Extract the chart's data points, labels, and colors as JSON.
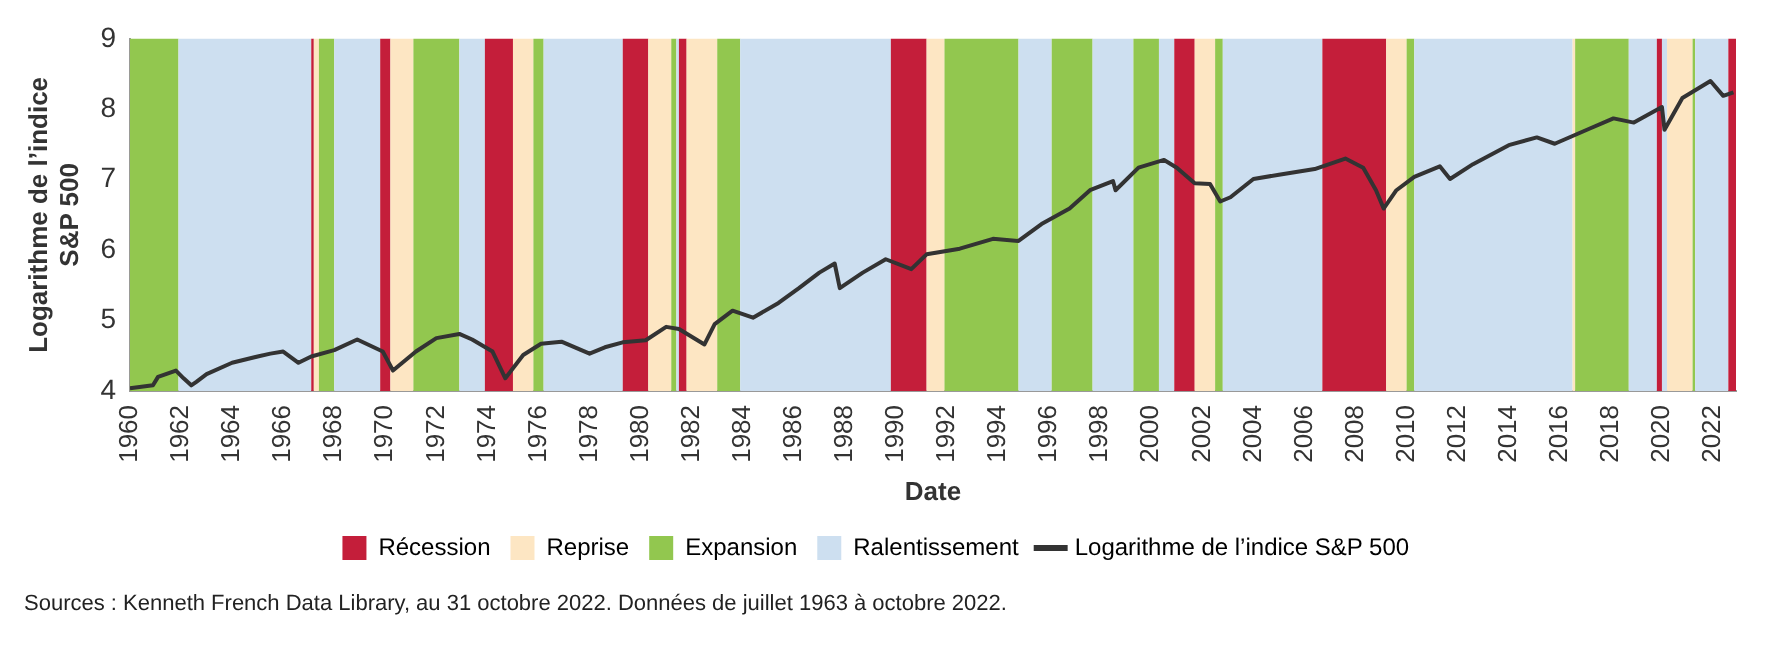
{
  "chart_data": {
    "type": "line",
    "xlabel": "Date",
    "ylabel": "Logarithme de l’indice S&P 500",
    "xlim": [
      1960,
      2022.9
    ],
    "xticks": [
      1960,
      1962,
      1964,
      1966,
      1968,
      1970,
      1972,
      1974,
      1976,
      1978,
      1980,
      1982,
      1984,
      1986,
      1988,
      1990,
      1992,
      1994,
      1996,
      1998,
      2000,
      2002,
      2004,
      2006,
      2008,
      2010,
      2012,
      2014,
      2016,
      2018,
      2020,
      2022
    ],
    "ylim": [
      4,
      9
    ],
    "yticks": [
      4,
      5,
      6,
      7,
      8,
      9
    ],
    "grid": false,
    "legend": "bottom",
    "marker": "none",
    "line_style": "solid",
    "series": [
      {
        "name": "Logarithme de l’indice S&P 500",
        "color": "#333333",
        "x": [
          1960,
          1960.9,
          1961.1,
          1961.8,
          1962.1,
          1962.4,
          1962.6,
          1963,
          1964,
          1965,
          1965.5,
          1966,
          1966.6,
          1967.1,
          1968,
          1968.9,
          1969.9,
          1970.3,
          1971.2,
          1972,
          1972.9,
          1973.4,
          1974.2,
          1974.7,
          1975.4,
          1976.1,
          1976.9,
          1978,
          1978.6,
          1979.3,
          1980.2,
          1981,
          1981.5,
          1982.5,
          1982.9,
          1983.6,
          1984.4,
          1985.4,
          1986.2,
          1987,
          1987.6,
          1987.8,
          1988.7,
          1989.6,
          1990.6,
          1991.2,
          1992.5,
          1993.8,
          1994.8,
          1995.7,
          1996.8,
          1997.6,
          1998.5,
          1998.6,
          1999.5,
          2000.5,
          2001,
          2001.7,
          2002.3,
          2002.7,
          2003.1,
          2004,
          2005,
          2006.4,
          2007.6,
          2008.3,
          2008.8,
          2009.1,
          2009.6,
          2010.3,
          2011.3,
          2011.7,
          2012.6,
          2014,
          2015.1,
          2015.8,
          2017.2,
          2018.1,
          2018.9,
          2020,
          2020.1,
          2020.8,
          2021.9,
          2022.4,
          2022.8
        ],
        "values": [
          4.04,
          4.08,
          4.2,
          4.29,
          4.18,
          4.08,
          4.13,
          4.24,
          4.4,
          4.49,
          4.53,
          4.56,
          4.4,
          4.49,
          4.58,
          4.73,
          4.56,
          4.29,
          4.56,
          4.75,
          4.81,
          4.73,
          4.56,
          4.18,
          4.51,
          4.67,
          4.7,
          4.53,
          4.62,
          4.69,
          4.72,
          4.91,
          4.88,
          4.66,
          4.95,
          5.14,
          5.04,
          5.25,
          5.46,
          5.68,
          5.81,
          5.46,
          5.68,
          5.87,
          5.73,
          5.94,
          6.02,
          6.16,
          6.13,
          6.37,
          6.59,
          6.85,
          6.98,
          6.85,
          7.17,
          7.28,
          7.17,
          6.95,
          6.94,
          6.69,
          6.75,
          7.01,
          7.07,
          7.15,
          7.3,
          7.17,
          6.85,
          6.59,
          6.85,
          7.04,
          7.19,
          7.01,
          7.22,
          7.49,
          7.6,
          7.51,
          7.73,
          7.87,
          7.81,
          8.03,
          7.71,
          8.16,
          8.4,
          8.19,
          8.24
        ]
      }
    ],
    "bands": [
      {
        "axis": "x",
        "from": 1960,
        "to": 1961.9,
        "color": "#92c74f"
      },
      {
        "axis": "x",
        "from": 1961.9,
        "to": 1967.1,
        "color": "#cddff0"
      },
      {
        "axis": "x",
        "from": 1967.1,
        "to": 1967.2,
        "label": "Récession",
        "color": "#c41e3a"
      },
      {
        "axis": "x",
        "from": 1967.2,
        "to": 1967.4,
        "label": "Reprise",
        "color": "#fde6c3"
      },
      {
        "axis": "x",
        "from": 1967.4,
        "to": 1968,
        "label": "Expansion",
        "color": "#92c74f"
      },
      {
        "axis": "x",
        "from": 1968,
        "to": 1969.8,
        "label": "Ralentissement",
        "color": "#cddff0"
      },
      {
        "axis": "x",
        "from": 1969.8,
        "to": 1970.2,
        "color": "#c41e3a"
      },
      {
        "axis": "x",
        "from": 1970.2,
        "to": 1971.1,
        "color": "#fde6c3"
      },
      {
        "axis": "x",
        "from": 1971.1,
        "to": 1972.9,
        "color": "#92c74f"
      },
      {
        "axis": "x",
        "from": 1972.9,
        "to": 1973.9,
        "color": "#cddff0"
      },
      {
        "axis": "x",
        "from": 1973.9,
        "to": 1975,
        "color": "#c41e3a"
      },
      {
        "axis": "x",
        "from": 1975,
        "to": 1975.8,
        "color": "#fde6c3"
      },
      {
        "axis": "x",
        "from": 1975.8,
        "to": 1976.2,
        "color": "#92c74f"
      },
      {
        "axis": "x",
        "from": 1976.2,
        "to": 1979.3,
        "color": "#cddff0"
      },
      {
        "axis": "x",
        "from": 1979.3,
        "to": 1980.3,
        "color": "#c41e3a"
      },
      {
        "axis": "x",
        "from": 1980.3,
        "to": 1981.2,
        "color": "#fde6c3"
      },
      {
        "axis": "x",
        "from": 1981.2,
        "to": 1981.4,
        "color": "#92c74f"
      },
      {
        "axis": "x",
        "from": 1981.4,
        "to": 1981.5,
        "color": "#cddff0"
      },
      {
        "axis": "x",
        "from": 1981.5,
        "to": 1981.8,
        "color": "#c41e3a"
      },
      {
        "axis": "x",
        "from": 1981.8,
        "to": 1983,
        "color": "#fde6c3"
      },
      {
        "axis": "x",
        "from": 1983,
        "to": 1983.9,
        "color": "#92c74f"
      },
      {
        "axis": "x",
        "from": 1983.9,
        "to": 1989.8,
        "color": "#cddff0"
      },
      {
        "axis": "x",
        "from": 1989.8,
        "to": 1991.2,
        "color": "#c41e3a"
      },
      {
        "axis": "x",
        "from": 1991.2,
        "to": 1991.9,
        "color": "#fde6c3"
      },
      {
        "axis": "x",
        "from": 1991.9,
        "to": 1994.8,
        "color": "#92c74f"
      },
      {
        "axis": "x",
        "from": 1994.8,
        "to": 1996.1,
        "color": "#cddff0"
      },
      {
        "axis": "x",
        "from": 1996.1,
        "to": 1997.7,
        "color": "#92c74f"
      },
      {
        "axis": "x",
        "from": 1997.7,
        "to": 1999.3,
        "color": "#cddff0"
      },
      {
        "axis": "x",
        "from": 1999.3,
        "to": 2000.3,
        "color": "#92c74f"
      },
      {
        "axis": "x",
        "from": 2000.3,
        "to": 2000.9,
        "color": "#cddff0"
      },
      {
        "axis": "x",
        "from": 2000.9,
        "to": 2001.7,
        "color": "#c41e3a"
      },
      {
        "axis": "x",
        "from": 2001.7,
        "to": 2002.5,
        "color": "#fde6c3"
      },
      {
        "axis": "x",
        "from": 2002.5,
        "to": 2002.8,
        "color": "#92c74f"
      },
      {
        "axis": "x",
        "from": 2002.8,
        "to": 2006.7,
        "color": "#cddff0"
      },
      {
        "axis": "x",
        "from": 2006.7,
        "to": 2009.2,
        "color": "#c41e3a"
      },
      {
        "axis": "x",
        "from": 2009.2,
        "to": 2010,
        "color": "#fde6c3"
      },
      {
        "axis": "x",
        "from": 2010,
        "to": 2010.3,
        "color": "#92c74f"
      },
      {
        "axis": "x",
        "from": 2010.3,
        "to": 2016.5,
        "color": "#cddff0"
      },
      {
        "axis": "x",
        "from": 2016.5,
        "to": 2016.6,
        "color": "#fde6c3"
      },
      {
        "axis": "x",
        "from": 2016.6,
        "to": 2018.7,
        "color": "#92c74f"
      },
      {
        "axis": "x",
        "from": 2018.7,
        "to": 2019.8,
        "color": "#cddff0"
      },
      {
        "axis": "x",
        "from": 2019.8,
        "to": 2020,
        "color": "#c41e3a"
      },
      {
        "axis": "x",
        "from": 2020,
        "to": 2020.2,
        "color": "#cddff0"
      },
      {
        "axis": "x",
        "from": 2020.2,
        "to": 2021.2,
        "color": "#fde6c3"
      },
      {
        "axis": "x",
        "from": 2021.2,
        "to": 2021.3,
        "color": "#92c74f"
      },
      {
        "axis": "x",
        "from": 2021.3,
        "to": 2022.6,
        "color": "#cddff0"
      },
      {
        "axis": "x",
        "from": 2022.6,
        "to": 2022.9,
        "color": "#c41e3a"
      }
    ],
    "annotations": [
      "Sources : Kenneth French Data Library, au 31 octobre 2022. Données de juillet 1963 à octobre 2022."
    ]
  }
}
